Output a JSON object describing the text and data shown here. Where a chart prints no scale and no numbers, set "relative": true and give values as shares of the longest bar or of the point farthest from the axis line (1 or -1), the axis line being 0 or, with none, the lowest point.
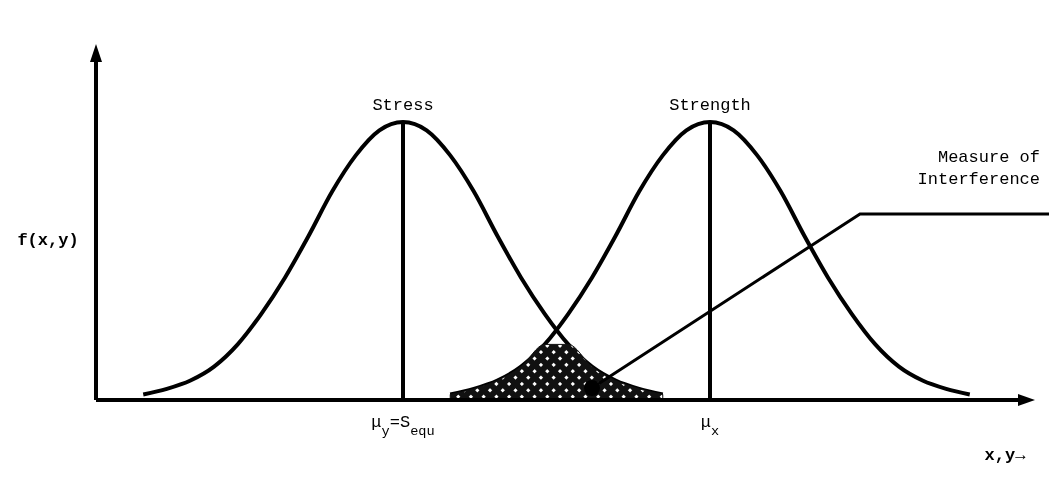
{
  "chart_data": {
    "type": "line",
    "relative": true,
    "xlabel": "x,y→",
    "ylabel": "f(x,y)",
    "categories": [
      null,
      null,
      null,
      null,
      null,
      null,
      null,
      null,
      null,
      null,
      null,
      null,
      null,
      "μ$_{y}$=S$_{equ}$",
      null,
      null,
      null,
      null,
      null,
      null,
      null,
      null,
      null,
      null,
      null,
      null,
      "μ$_{x}$",
      null,
      null,
      null,
      null,
      null,
      null,
      null,
      null,
      null,
      null,
      null,
      null,
      null
    ],
    "series": [
      {
        "name": "Stress",
        "color": "#000000",
        "values": [
          null,
          null,
          0.02,
          0.04,
          0.07,
          0.12,
          0.2,
          0.31,
          0.44,
          0.59,
          0.75,
          0.88,
          0.97,
          1,
          0.97,
          0.88,
          0.75,
          0.59,
          0.44,
          0.31,
          0.2,
          0.12,
          0.07,
          0.04,
          0.02,
          null,
          null,
          null,
          null,
          null,
          null,
          null,
          null,
          null,
          null,
          null,
          null,
          null,
          null,
          null
        ]
      },
      {
        "name": "Strength",
        "color": "#000000",
        "values": [
          null,
          null,
          null,
          null,
          null,
          null,
          null,
          null,
          null,
          null,
          null,
          null,
          null,
          null,
          null,
          0.02,
          0.04,
          0.07,
          0.12,
          0.2,
          0.31,
          0.44,
          0.59,
          0.75,
          0.88,
          0.97,
          1,
          0.97,
          0.88,
          0.75,
          0.59,
          0.44,
          0.31,
          0.2,
          0.12,
          0.07,
          0.04,
          0.02,
          null,
          null
        ]
      },
      {
        "type": "area",
        "color": "#111111",
        "values": [
          null,
          null,
          null,
          null,
          null,
          null,
          null,
          null,
          null,
          null,
          null,
          null,
          null,
          null,
          null,
          0.02,
          0.04,
          0.07,
          0.12,
          0.2,
          0.2,
          0.12,
          0.07,
          0.04,
          0.02,
          null,
          null,
          null,
          null,
          null,
          null,
          null,
          null,
          null,
          null,
          null,
          null,
          null,
          null,
          null
        ]
      }
    ],
    "ref_lines": [
      {
        "axis": "x",
        "value": "μ$_{y}$=S$_{equ}$"
      },
      {
        "axis": "x",
        "value": "μ$_{x}$"
      }
    ],
    "annotations": [
      "Measure of\nInterference"
    ]
  }
}
